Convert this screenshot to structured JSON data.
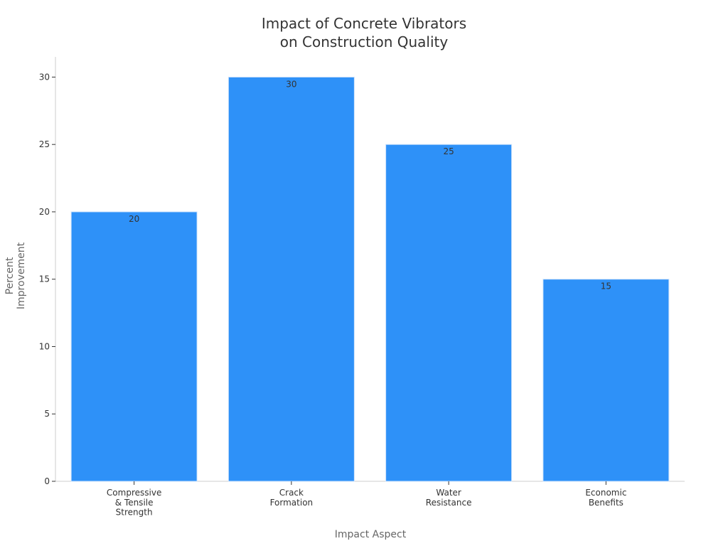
{
  "chart_data": {
    "type": "bar",
    "title": "Impact of Concrete Vibrators\non Construction Quality",
    "x_label": "Impact Aspect",
    "y_label": "Percent\nImprovement",
    "categories": [
      "Compressive\n& Tensile\nStrength",
      "Crack\nFormation",
      "Water\nResistance",
      "Economic\nBenefits"
    ],
    "values": [
      20,
      30,
      25,
      15
    ],
    "color": "#2e91f8",
    "ylim": [
      0,
      31.5
    ],
    "yticks": [
      0,
      5,
      10,
      15,
      20,
      25,
      30
    ],
    "grid": false
  }
}
